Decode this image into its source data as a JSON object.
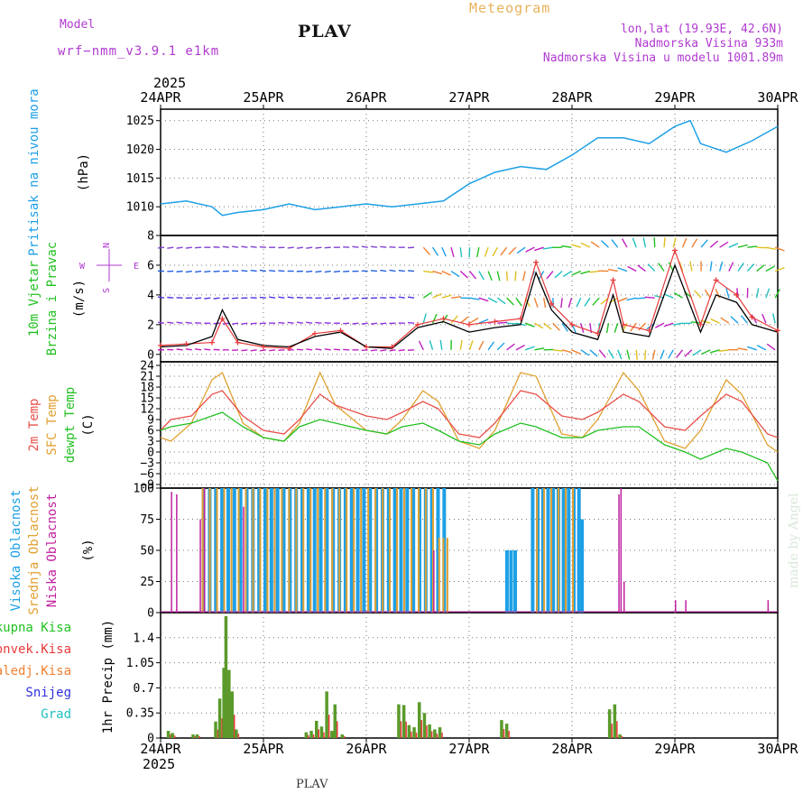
{
  "header": {
    "model_label": "Model",
    "model_name": "wrf−nmm_v3.9.1 e1km",
    "title": "PLAV",
    "meteogram_label": "Meteogram",
    "lonlat": "lon,lat (19.93E, 42.6N)",
    "altitude": "Nadmorska Visina 933m",
    "model_altitude": "Nadmorska Visina u modelu 1001.89m",
    "year": "2025",
    "footer_title": "PLAV",
    "watermark": "made by Angel"
  },
  "colors": {
    "pressure": "#1ea0e6",
    "wind_speed": "#000000",
    "gust": "#e83a3a",
    "t2m": "#e8504a",
    "sfc": "#e0a030",
    "dew": "#22c022",
    "high_cloud": "#1ea0e6",
    "mid_cloud": "#e0a030",
    "low_cloud": "#c020a0",
    "total_precip": "#5a9a2a",
    "conv_precip": "#e83a3a"
  },
  "chart_data": [
    {
      "type": "line",
      "panel": "pressure",
      "ylabel_title": "Pritisak na nivou mora",
      "ylabel_unit": "(hPa)",
      "ylim": [
        1005,
        1027
      ],
      "yticks": [
        "1010",
        "1015",
        "1020",
        "1025"
      ],
      "x_categories": [
        "24APR",
        "25APR",
        "26APR",
        "27APR",
        "28APR",
        "29APR",
        "30APR"
      ],
      "x_days": [
        0,
        0.25,
        0.5,
        0.6,
        0.75,
        1.0,
        1.25,
        1.5,
        1.75,
        2.0,
        2.25,
        2.5,
        2.75,
        3.0,
        3.25,
        3.5,
        3.75,
        4.0,
        4.25,
        4.5,
        4.75,
        5.0,
        5.15,
        5.25,
        5.5,
        5.75,
        6.0
      ],
      "series": [
        {
          "values": [
            1010.5,
            1011,
            1010,
            1008.5,
            1009,
            1009.5,
            1010.5,
            1009.5,
            1010,
            1010.5,
            1010,
            1010.5,
            1011,
            1014,
            1016,
            1017,
            1016.5,
            1019,
            1022,
            1022,
            1021,
            1024,
            1025,
            1021,
            1019.5,
            1021.5,
            1024
          ]
        }
      ],
      "grid": true
    },
    {
      "type": "line",
      "panel": "wind",
      "ylabel_title": "10m Vjetar",
      "ylabel_title2": "Brzina i Pravac",
      "ylabel_unit": "(m/s)",
      "compass": {
        "n": "N",
        "s": "S",
        "e": "E",
        "w": "W"
      },
      "ylim": [
        -0.5,
        8
      ],
      "yticks": [
        "0",
        "2",
        "4",
        "6",
        "8"
      ],
      "x_days": [
        0,
        0.25,
        0.5,
        0.6,
        0.75,
        1.0,
        1.25,
        1.5,
        1.75,
        2.0,
        2.25,
        2.5,
        2.75,
        3.0,
        3.25,
        3.5,
        3.65,
        3.8,
        4.0,
        4.25,
        4.4,
        4.5,
        4.75,
        5.0,
        5.25,
        5.4,
        5.6,
        5.75,
        6.0
      ],
      "series": [
        {
          "name": "speed",
          "values": [
            0.5,
            0.6,
            1.2,
            3.0,
            1.0,
            0.6,
            0.5,
            1.2,
            1.5,
            0.5,
            0.4,
            1.8,
            2.2,
            1.5,
            1.8,
            2.0,
            5.5,
            3.0,
            1.5,
            1.0,
            4.0,
            1.5,
            1.2,
            6.0,
            1.5,
            4.0,
            3.5,
            2.0,
            1.5
          ]
        },
        {
          "name": "gust",
          "values": [
            0.6,
            0.7,
            0.8,
            2.4,
            0.8,
            0.5,
            0.4,
            1.4,
            1.6,
            0.5,
            0.5,
            2.0,
            2.4,
            2.0,
            2.2,
            2.4,
            6.2,
            3.4,
            2.0,
            1.4,
            5.0,
            2.0,
            1.6,
            7.0,
            2.0,
            5.0,
            4.0,
            2.5,
            1.6
          ]
        }
      ],
      "arrow_rows": [
        0.3,
        2.1,
        3.8,
        5.6,
        7.2
      ],
      "grid": true
    },
    {
      "type": "line",
      "panel": "temperature",
      "ylabel_title": "2m Temp",
      "ylabel_title2": "SFC Temp",
      "ylabel_title3": "dewpt Temp",
      "ylabel_unit": "(C)",
      "ylim": [
        -10,
        25
      ],
      "yticks": [
        "−9",
        "−6",
        "−3",
        "0",
        "3",
        "6",
        "9",
        "12",
        "15",
        "18",
        "21",
        "24"
      ],
      "x_days": [
        0,
        0.1,
        0.3,
        0.5,
        0.6,
        0.8,
        1.0,
        1.2,
        1.35,
        1.55,
        1.7,
        2.0,
        2.2,
        2.35,
        2.55,
        2.7,
        2.9,
        3.1,
        3.25,
        3.5,
        3.65,
        3.9,
        4.1,
        4.25,
        4.5,
        4.65,
        4.9,
        5.1,
        5.25,
        5.5,
        5.65,
        5.9,
        6.0
      ],
      "series": [
        {
          "name": "t2m",
          "values": [
            6,
            9,
            10,
            16,
            17,
            10,
            6,
            5,
            9,
            16,
            13,
            10,
            9,
            11,
            14,
            12,
            5,
            4,
            8,
            17,
            16,
            10,
            9,
            11,
            16,
            14,
            7,
            6,
            10,
            16,
            14,
            5,
            4
          ]
        },
        {
          "name": "sfc",
          "values": [
            4,
            3,
            8,
            20,
            22,
            8,
            4,
            3,
            8,
            22,
            13,
            6,
            5,
            9,
            17,
            14,
            3,
            1,
            6,
            22,
            21,
            5,
            4,
            9,
            22,
            17,
            3,
            1,
            6,
            20,
            16,
            2,
            0
          ]
        },
        {
          "name": "dewpt",
          "values": [
            6,
            7,
            8,
            10,
            11,
            7,
            4,
            3,
            7,
            9,
            8,
            6,
            5,
            7,
            8,
            6,
            3,
            2,
            5,
            8,
            7,
            4,
            4,
            6,
            7,
            7,
            2,
            0,
            -2,
            1,
            0,
            -3,
            -8
          ]
        }
      ],
      "grid": true
    },
    {
      "type": "bar",
      "panel": "cloud",
      "ylabel_title": "Visoka Oblacnost",
      "ylabel_title2": "Srednja Oblacnost",
      "ylabel_title3": "Niska Oblacnost",
      "ylabel_unit": "(%)",
      "ylim": [
        0,
        100
      ],
      "yticks": [
        "0",
        "25",
        "50",
        "75",
        "100"
      ],
      "series": [
        {
          "name": "high",
          "segments": [
            [
              0.4,
              2.8,
              100,
              0.06
            ],
            [
              3.35,
              3.45,
              50,
              0.04
            ],
            [
              3.6,
              4.05,
              100,
              0.05
            ],
            [
              4.05,
              4.1,
              75,
              0.03
            ]
          ]
        },
        {
          "name": "mid",
          "segments": [
            [
              0.4,
              2.7,
              100,
              0.07
            ],
            [
              2.7,
              2.8,
              60,
              0.04
            ],
            [
              3.65,
              4.0,
              100,
              0.07
            ]
          ]
        },
        {
          "name": "low",
          "scatter": [
            [
              0.1,
              97
            ],
            [
              0.15,
              95
            ],
            [
              0.38,
              75
            ],
            [
              0.42,
              100
            ],
            [
              0.8,
              85
            ],
            [
              2.65,
              50
            ],
            [
              4.45,
              95
            ],
            [
              4.47,
              100
            ],
            [
              4.5,
              25
            ],
            [
              5.0,
              10
            ],
            [
              5.1,
              10
            ],
            [
              5.9,
              10
            ]
          ]
        }
      ],
      "grid": true
    },
    {
      "type": "bar",
      "panel": "precip",
      "ylabel_title": "1hr Precip",
      "ylabel_unit": "(mm)",
      "legend": [
        "Ukupna Kisa",
        "Konvek.Kisa",
        "Zaledj.Kisa",
        "Snijeg",
        "Grad"
      ],
      "legend_colors": [
        "#22c022",
        "#e83a3a",
        "#f08030",
        "#3030e0",
        "#22c0c0"
      ],
      "ylim": [
        0,
        1.75
      ],
      "yticks": [
        "0",
        "0.35",
        "0.7",
        "1.05",
        "1.4"
      ],
      "x": [
        0.06,
        0.1,
        0.3,
        0.34,
        0.52,
        0.56,
        0.6,
        0.62,
        0.65,
        0.68,
        0.72,
        1.4,
        1.45,
        1.5,
        1.55,
        1.6,
        1.65,
        1.68,
        1.75,
        2.3,
        2.35,
        2.4,
        2.45,
        2.5,
        2.55,
        2.6,
        2.65,
        2.7,
        3.3,
        3.35,
        4.35,
        4.4,
        4.45
      ],
      "values": [
        0.1,
        0.07,
        0.05,
        0.05,
        0.23,
        0.55,
        0.98,
        1.7,
        0.95,
        0.65,
        0.12,
        0.08,
        0.1,
        0.24,
        0.16,
        0.65,
        0.1,
        0.47,
        0.05,
        0.47,
        0.46,
        0.18,
        0.15,
        0.5,
        0.35,
        0.19,
        0.12,
        0.15,
        0.25,
        0.2,
        0.4,
        0.47,
        0.05
      ],
      "grid": true
    }
  ]
}
